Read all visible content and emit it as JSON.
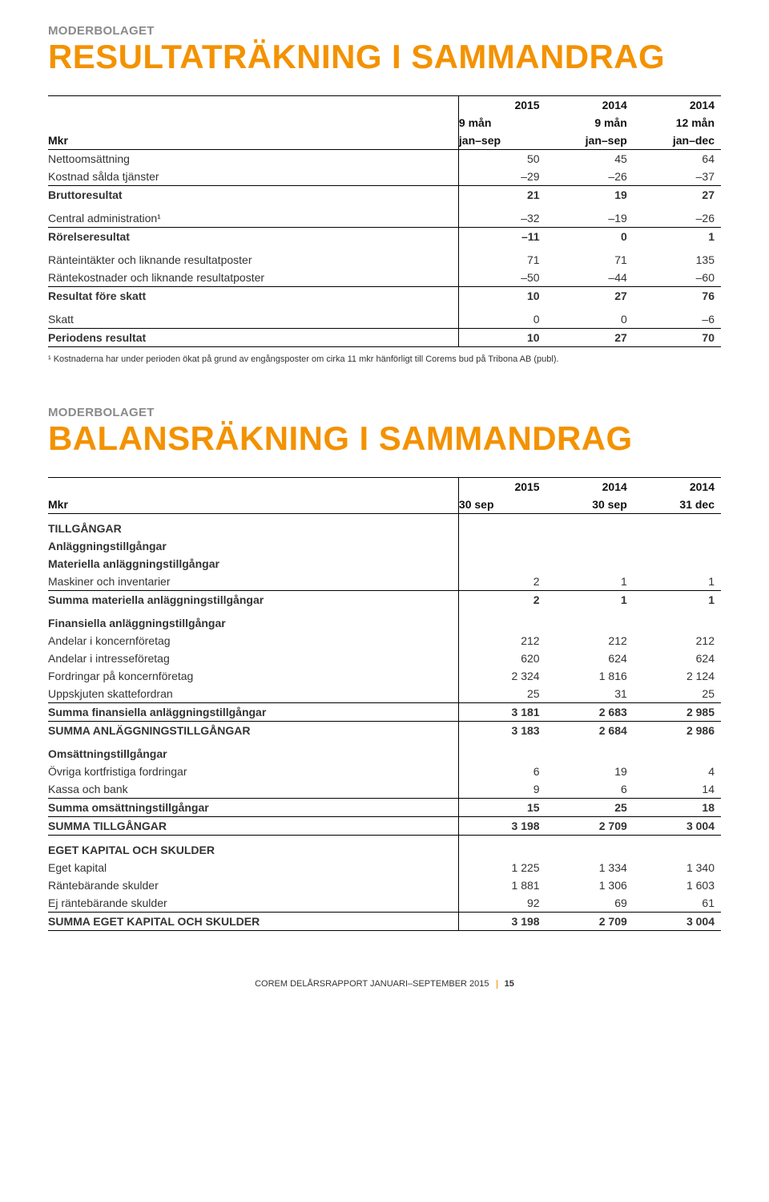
{
  "colors": {
    "accent": "#f39200",
    "label_gray": "#8a8a8a",
    "text": "#333333",
    "border": "#000000",
    "background": "#ffffff"
  },
  "typography": {
    "title_fontsize_pt": 42,
    "label_fontsize_pt": 15,
    "body_fontsize_pt": 14,
    "footnote_fontsize_pt": 11,
    "footer_fontsize_pt": 11
  },
  "section1": {
    "label": "MODERBOLAGET",
    "title": "RESULTATRÄKNING I SAMMANDRAG",
    "header": {
      "col0": "Mkr",
      "col1_line1": "2015",
      "col1_line2": "9 mån",
      "col1_line3": "jan–sep",
      "col2_line1": "2014",
      "col2_line2": "9 mån",
      "col2_line3": "jan–sep",
      "col3_line1": "2014",
      "col3_line2": "12 mån",
      "col3_line3": "jan–dec"
    },
    "rows": {
      "r0": {
        "label": "Nettoomsättning",
        "v1": "50",
        "v2": "45",
        "v3": "64"
      },
      "r1": {
        "label": "Kostnad sålda tjänster",
        "v1": "–29",
        "v2": "–26",
        "v3": "–37"
      },
      "r2": {
        "label": "Bruttoresultat",
        "v1": "21",
        "v2": "19",
        "v3": "27"
      },
      "r3": {
        "label": "Central administration¹",
        "v1": "–32",
        "v2": "–19",
        "v3": "–26"
      },
      "r4": {
        "label": "Rörelseresultat",
        "v1": "–11",
        "v2": "0",
        "v3": "1"
      },
      "r5": {
        "label": "Ränteintäkter och liknande resultatposter",
        "v1": "71",
        "v2": "71",
        "v3": "135"
      },
      "r6": {
        "label": "Räntekostnader och liknande resultatposter",
        "v1": "–50",
        "v2": "–44",
        "v3": "–60"
      },
      "r7": {
        "label": "Resultat före skatt",
        "v1": "10",
        "v2": "27",
        "v3": "76"
      },
      "r8": {
        "label": "Skatt",
        "v1": "0",
        "v2": "0",
        "v3": "–6"
      },
      "r9": {
        "label": "Periodens resultat",
        "v1": "10",
        "v2": "27",
        "v3": "70"
      }
    },
    "footnote": "¹ Kostnaderna har under perioden ökat på grund av engångsposter om cirka 11 mkr hänförligt till Corems bud på Tribona AB (publ)."
  },
  "section2": {
    "label": "MODERBOLAGET",
    "title": "BALANSRÄKNING I SAMMANDRAG",
    "header": {
      "col0": "Mkr",
      "col1_line1": "2015",
      "col1_line2": "30 sep",
      "col2_line1": "2014",
      "col2_line2": "30 sep",
      "col3_line1": "2014",
      "col3_line2": "31 dec"
    },
    "groups": {
      "g1": "TILLGÅNGAR",
      "g1a": "Anläggningstillgångar",
      "g1b": "Materiella anläggningstillgångar",
      "g2": "Finansiella anläggningstillgångar",
      "g3": "Omsättningstillgångar",
      "g4": "EGET KAPITAL OCH SKULDER"
    },
    "rows": {
      "a1": {
        "label": "Maskiner och inventarier",
        "v1": "2",
        "v2": "1",
        "v3": "1"
      },
      "a2": {
        "label": "Summa materiella anläggningstillgångar",
        "v1": "2",
        "v2": "1",
        "v3": "1"
      },
      "b1": {
        "label": "Andelar i koncernföretag",
        "v1": "212",
        "v2": "212",
        "v3": "212"
      },
      "b2": {
        "label": "Andelar i intresseföretag",
        "v1": "620",
        "v2": "624",
        "v3": "624"
      },
      "b3": {
        "label": "Fordringar på koncernföretag",
        "v1": "2 324",
        "v2": "1 816",
        "v3": "2 124"
      },
      "b4": {
        "label": "Uppskjuten skattefordran",
        "v1": "25",
        "v2": "31",
        "v3": "25"
      },
      "b5": {
        "label": "Summa finansiella anläggningstillgångar",
        "v1": "3 181",
        "v2": "2 683",
        "v3": "2 985"
      },
      "b6": {
        "label": "SUMMA ANLÄGGNINGSTILLGÅNGAR",
        "v1": "3 183",
        "v2": "2 684",
        "v3": "2 986"
      },
      "c1": {
        "label": "Övriga kortfristiga fordringar",
        "v1": "6",
        "v2": "19",
        "v3": "4"
      },
      "c2": {
        "label": "Kassa och bank",
        "v1": "9",
        "v2": "6",
        "v3": "14"
      },
      "c3": {
        "label": "Summa omsättningstillgångar",
        "v1": "15",
        "v2": "25",
        "v3": "18"
      },
      "c4": {
        "label": "SUMMA TILLGÅNGAR",
        "v1": "3 198",
        "v2": "2 709",
        "v3": "3 004"
      },
      "d1": {
        "label": "Eget kapital",
        "v1": "1 225",
        "v2": "1 334",
        "v3": "1 340"
      },
      "d2": {
        "label": "Räntebärande skulder",
        "v1": "1 881",
        "v2": "1 306",
        "v3": "1 603"
      },
      "d3": {
        "label": "Ej räntebärande skulder",
        "v1": "92",
        "v2": "69",
        "v3": "61"
      },
      "d4": {
        "label": "SUMMA EGET KAPITAL OCH SKULDER",
        "v1": "3 198",
        "v2": "2 709",
        "v3": "3 004"
      }
    }
  },
  "footer": {
    "text": "COREM DELÅRSRAPPORT JANUARI–SEPTEMBER 2015",
    "page": "15"
  }
}
